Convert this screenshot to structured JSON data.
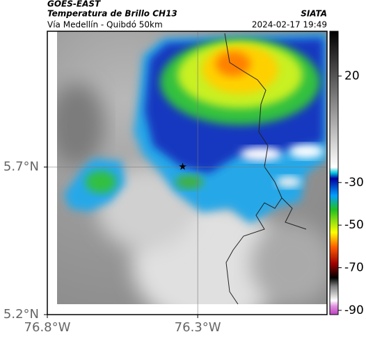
{
  "header": {
    "title": "GOES-EAST",
    "subtitle": "Temperatura de Brillo CH13",
    "location": "Vía Medellín - Quibdó 50km",
    "source": "SIATA",
    "datetime": "2024-02-17 19:49"
  },
  "map": {
    "lonlim": [
      -76.8,
      -75.87
    ],
    "latlim": [
      5.2,
      6.16
    ],
    "xticks": [
      {
        "value": -76.8,
        "label": "76.8°W"
      },
      {
        "value": -76.3,
        "label": "76.3°W"
      }
    ],
    "yticks": [
      {
        "value": 5.7,
        "label": "5.7°N"
      },
      {
        "value": 5.2,
        "label": "5.2°N"
      }
    ],
    "grid": true,
    "station": {
      "lon": -76.35,
      "lat": 5.7
    }
  },
  "colorbar": {
    "lim": [
      -92,
      41
    ],
    "ticks": [
      20,
      -30,
      -50,
      -70,
      -90
    ]
  }
}
